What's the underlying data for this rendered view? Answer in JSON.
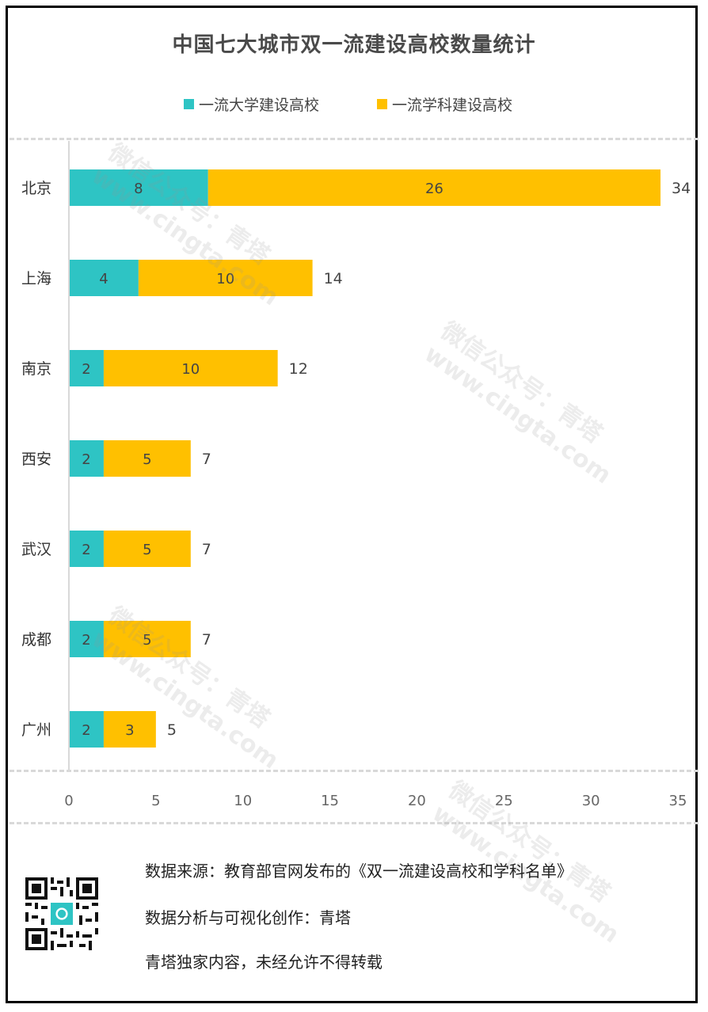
{
  "chart_data": {
    "type": "bar",
    "orientation": "horizontal",
    "stacked": true,
    "title": "中国七大城市双一流建设高校数量统计",
    "categories": [
      "北京",
      "上海",
      "南京",
      "西安",
      "武汉",
      "成都",
      "广州"
    ],
    "series": [
      {
        "name": "一流大学建设高校",
        "values": [
          8,
          4,
          2,
          2,
          2,
          2,
          2
        ],
        "color": "#2ec4c4"
      },
      {
        "name": "一流学科建设高校",
        "values": [
          26,
          10,
          10,
          5,
          5,
          5,
          3
        ],
        "color": "#ffc000"
      }
    ],
    "totals": [
      34,
      14,
      12,
      7,
      7,
      7,
      5
    ],
    "xlim": [
      0,
      35
    ],
    "xticks": [
      0,
      5,
      10,
      15,
      20,
      25,
      30,
      35
    ],
    "grid": false,
    "legend_position": "top"
  },
  "footer": {
    "source": "数据来源：教育部官网发布的《双一流建设高校和学科名单》",
    "analysis": "数据分析与可视化创作：青塔",
    "copyright": "青塔独家内容，未经允许不得转载"
  },
  "watermark": {
    "line1": "微信公众号：青塔",
    "line2": "www.cingta.com"
  },
  "icons": {
    "qr": "qr-code-icon"
  }
}
